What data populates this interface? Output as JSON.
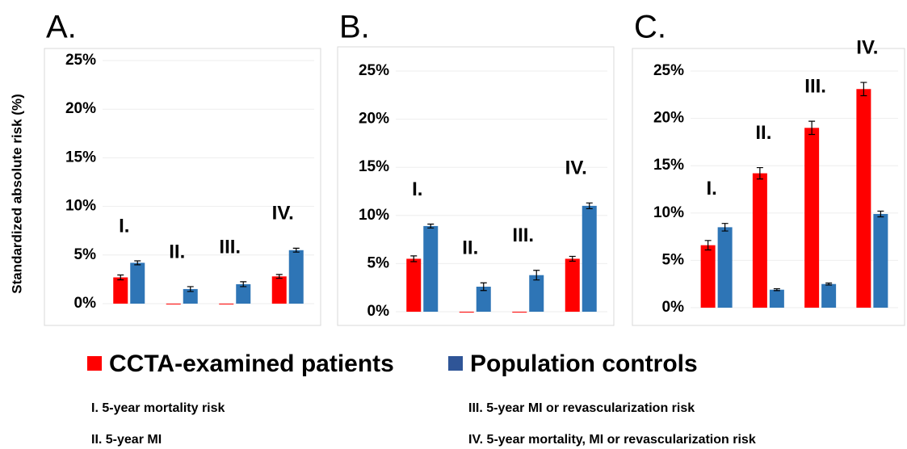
{
  "chart_data": [
    {
      "type": "bar",
      "title": "A.",
      "y_label": "Standardized absolute risk (%)",
      "categories": [
        "I.",
        "II.",
        "III.",
        "IV."
      ],
      "series": [
        {
          "name": "CCTA-examined patients",
          "color": "#ff0000",
          "values": [
            2.7,
            0,
            0,
            2.8
          ],
          "errors": [
            0.25,
            0,
            0,
            0.2
          ]
        },
        {
          "name": "Population controls",
          "color": "#2e75b6",
          "values": [
            4.2,
            1.5,
            2.0,
            5.5
          ],
          "errors": [
            0.2,
            0.25,
            0.25,
            0.2
          ]
        }
      ],
      "ylim": [
        0,
        25
      ],
      "yticks": [
        {
          "value": 0,
          "label": "0%"
        },
        {
          "value": 5,
          "label": "5%"
        },
        {
          "value": 10,
          "label": "10%"
        },
        {
          "value": 15,
          "label": "15%"
        },
        {
          "value": 20,
          "label": "20%"
        },
        {
          "value": 25,
          "label": "25%"
        }
      ],
      "grid": true
    },
    {
      "type": "bar",
      "title": "B.",
      "categories": [
        "I.",
        "II.",
        "III.",
        "IV."
      ],
      "series": [
        {
          "color": "#ff0000",
          "values": [
            5.5,
            0,
            0,
            5.5
          ],
          "errors": [
            0.3,
            0,
            0,
            0.25
          ]
        },
        {
          "color": "#2e75b6",
          "values": [
            8.9,
            2.6,
            3.8,
            11.0
          ],
          "errors": [
            0.2,
            0.4,
            0.5,
            0.3
          ]
        }
      ],
      "ylim": [
        0,
        25
      ],
      "yticks": [
        {
          "value": 0,
          "label": "0%"
        },
        {
          "value": 5,
          "label": "5%"
        },
        {
          "value": 10,
          "label": "10%"
        },
        {
          "value": 15,
          "label": "15%"
        },
        {
          "value": 20,
          "label": "20%"
        },
        {
          "value": 25,
          "label": "25%"
        }
      ],
      "grid": true
    },
    {
      "type": "bar",
      "title": "C.",
      "categories": [
        "I.",
        "II.",
        "III.",
        "IV."
      ],
      "series": [
        {
          "color": "#ff0000",
          "values": [
            6.6,
            14.2,
            19.0,
            23.1
          ],
          "errors": [
            0.5,
            0.6,
            0.7,
            0.7
          ]
        },
        {
          "color": "#2e75b6",
          "values": [
            8.5,
            1.9,
            2.5,
            9.9
          ],
          "errors": [
            0.4,
            0.1,
            0.1,
            0.3
          ]
        }
      ],
      "ylim": [
        0,
        25
      ],
      "yticks": [
        {
          "value": 0,
          "label": "0%"
        },
        {
          "value": 5,
          "label": "5%"
        },
        {
          "value": 10,
          "label": "10%"
        },
        {
          "value": 15,
          "label": "15%"
        },
        {
          "value": 20,
          "label": "20%"
        },
        {
          "value": 25,
          "label": "25%"
        }
      ],
      "grid": true
    }
  ],
  "notes": [
    "I. 5-year mortality risk",
    "II. 5-year MI",
    "III. 5-year MI or revascularization risk",
    "IV. 5-year mortality, MI or revascularization risk"
  ]
}
